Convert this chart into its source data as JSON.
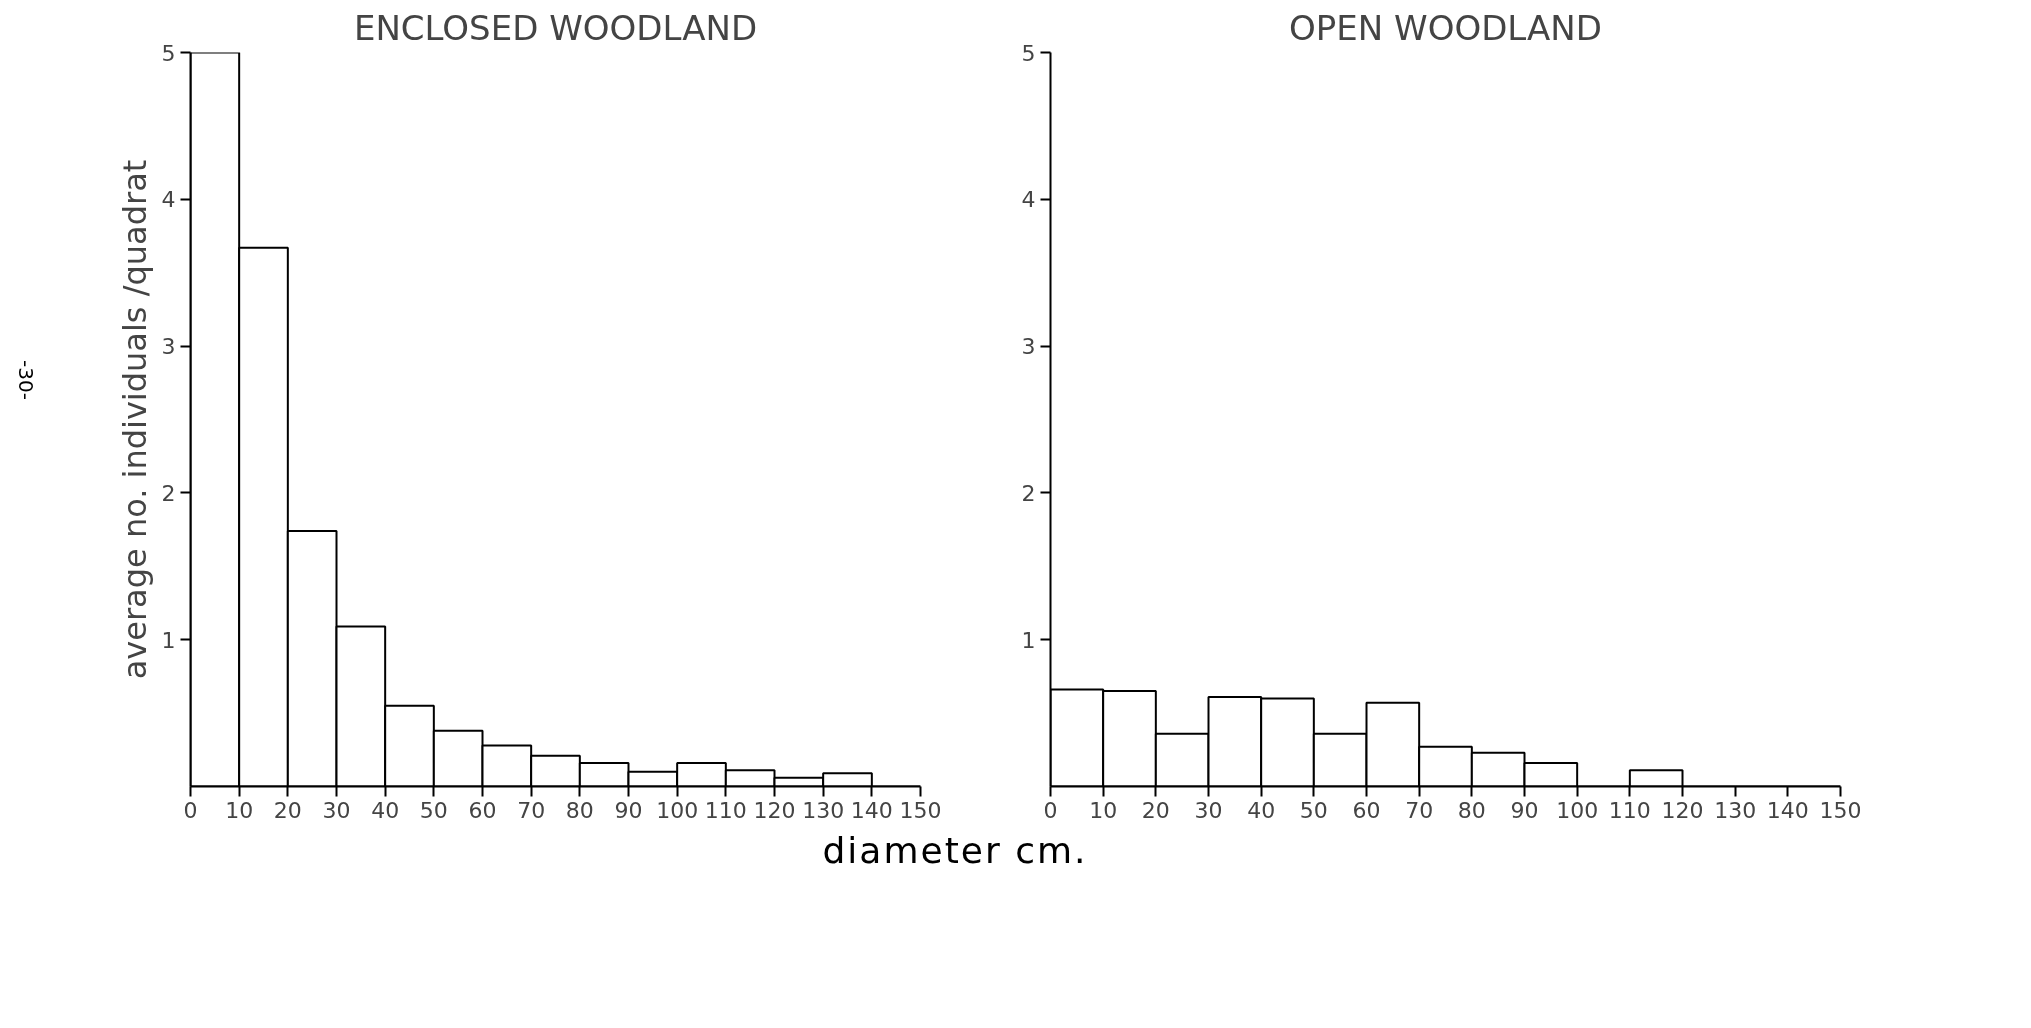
{
  "chart_data": [
    {
      "type": "histogram",
      "title": "ENCLOSED WOODLAND",
      "ylabel": "average no. individuals /quadrat",
      "xlabel": "diameter cm.",
      "annotations": [
        "-30-"
      ],
      "bins": [
        0,
        10,
        20,
        30,
        40,
        50,
        60,
        70,
        80,
        90,
        100,
        110,
        120,
        130,
        140,
        150
      ],
      "values": [
        5.0,
        3.67,
        1.74,
        1.09,
        0.55,
        0.38,
        0.28,
        0.21,
        0.16,
        0.1,
        0.16,
        0.11,
        0.06,
        0.09,
        0
      ],
      "color": "#ffffff",
      "xlim": [
        0,
        150
      ],
      "ylim": [
        0,
        5
      ],
      "xticks": [
        0,
        10,
        20,
        30,
        40,
        50,
        60,
        70,
        80,
        90,
        100,
        110,
        120,
        130,
        140,
        150
      ],
      "yticks": [
        1,
        2,
        3,
        4,
        5
      ],
      "grid": false
    },
    {
      "type": "histogram",
      "title": "OPEN WOODLAND",
      "bins": [
        0,
        10,
        20,
        30,
        40,
        50,
        60,
        70,
        80,
        90,
        100,
        110,
        120,
        130,
        140,
        150
      ],
      "values": [
        0.66,
        0.65,
        0.36,
        0.61,
        0.6,
        0.36,
        0.57,
        0.27,
        0.23,
        0.16,
        0,
        0.11,
        0,
        0,
        0
      ],
      "color": "#ffffff",
      "xlim": [
        0,
        150
      ],
      "ylim": [
        0,
        5
      ],
      "xticks": [
        0,
        10,
        20,
        30,
        40,
        50,
        60,
        70,
        80,
        90,
        100,
        110,
        120,
        130,
        140,
        150
      ],
      "yticks": [
        1,
        2,
        3,
        4,
        5
      ],
      "grid": false
    }
  ]
}
